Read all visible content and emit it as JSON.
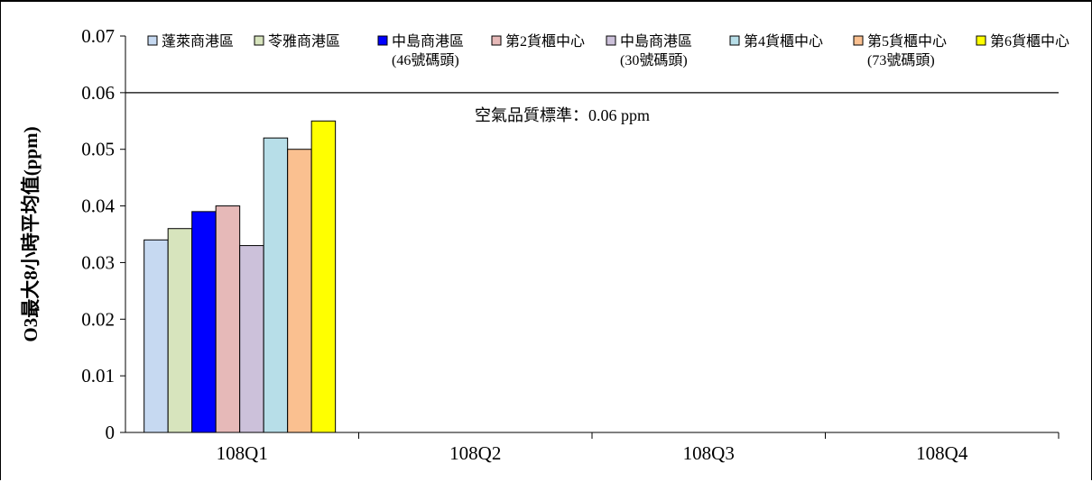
{
  "chart_data": {
    "type": "bar",
    "categories": [
      "108Q1",
      "108Q2",
      "108Q3",
      "108Q4"
    ],
    "series": [
      {
        "name": "蓬萊商港區",
        "color": "#c6d9f1",
        "values": [
          0.034,
          null,
          null,
          null
        ]
      },
      {
        "name": "苓雅商港區",
        "color": "#d7e4bd",
        "values": [
          0.036,
          null,
          null,
          null
        ]
      },
      {
        "name": "中島商港區(46號碼頭)",
        "legend_lines": [
          "中島商港區",
          "(46號碼頭)"
        ],
        "color": "#0000ff",
        "values": [
          0.039,
          null,
          null,
          null
        ]
      },
      {
        "name": "第2貨櫃中心",
        "color": "#e6b9b8",
        "values": [
          0.04,
          null,
          null,
          null
        ]
      },
      {
        "name": "中島商港區(30號碼頭)",
        "legend_lines": [
          "中島商港區",
          "(30號碼頭)"
        ],
        "color": "#ccc1da",
        "values": [
          0.033,
          null,
          null,
          null
        ]
      },
      {
        "name": "第4貨櫃中心",
        "color": "#b7dee8",
        "values": [
          0.052,
          null,
          null,
          null
        ]
      },
      {
        "name": "第5貨櫃中心(73號碼頭)",
        "legend_lines": [
          "第5貨櫃中心",
          "(73號碼頭)"
        ],
        "color": "#fac090",
        "values": [
          0.05,
          null,
          null,
          null
        ]
      },
      {
        "name": "第6貨櫃中心",
        "color": "#ffff00",
        "values": [
          0.055,
          null,
          null,
          null
        ]
      }
    ],
    "ylabel": "O3最大8小時平均值(ppm)",
    "ylim": [
      0,
      0.07
    ],
    "yticks": [
      "0",
      "0.01",
      "0.02",
      "0.03",
      "0.04",
      "0.05",
      "0.06",
      "0.07"
    ],
    "grid": false,
    "legend_position": "top",
    "reference_line": {
      "value": 0.06,
      "label": "空氣品質標準：0.06 ppm"
    }
  }
}
